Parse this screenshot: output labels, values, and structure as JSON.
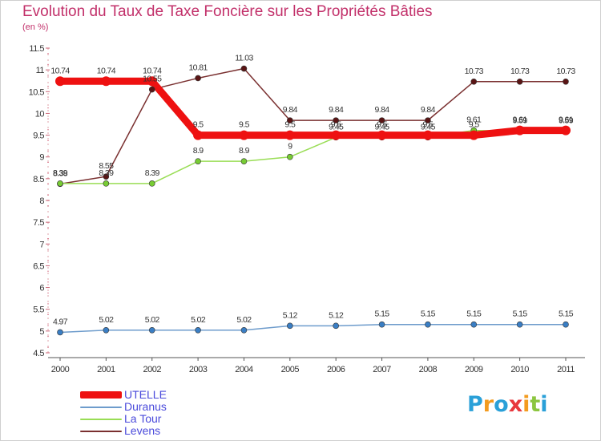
{
  "title": "Evolution du Taux de Taxe Foncière sur les Propriétés Bâties",
  "subtitle": "(en %)",
  "logo": {
    "text": "Proxiti",
    "letters": [
      "P",
      "r",
      "o",
      "x",
      "i",
      "t",
      "i"
    ],
    "colors": [
      "#2aa0d8",
      "#f39b1f",
      "#2aa0d8",
      "#e8373d",
      "#f39b1f",
      "#8cc63f",
      "#2aa0d8"
    ]
  },
  "chart_data": {
    "type": "line",
    "title": "Evolution du Taux de Taxe Foncière sur les Propriétés Bâties",
    "ylabel": "(en %)",
    "ylim": [
      4.5,
      11.5
    ],
    "yticks": [
      "4.5",
      "5",
      "5.5",
      "6",
      "6.5",
      "7",
      "7.5",
      "8",
      "8.5",
      "9",
      "9.5",
      "10",
      "10.5",
      "11",
      "11.5"
    ],
    "categories": [
      "2000",
      "2001",
      "2002",
      "2003",
      "2004",
      "2005",
      "2006",
      "2007",
      "2008",
      "2009",
      "2010",
      "2011"
    ],
    "series": [
      {
        "name": "UTELLE",
        "color": "#ee1111",
        "point_color": "#ee1111",
        "width": 9,
        "values": [
          10.74,
          10.74,
          10.74,
          9.5,
          9.5,
          9.5,
          9.5,
          9.5,
          9.5,
          9.5,
          9.61,
          9.61
        ],
        "labels": [
          "10.74",
          "10.74",
          "10.74",
          "9.5",
          "9.5",
          "9.5",
          "9.5",
          "9.5",
          "9.5",
          "9.5",
          "9.61",
          "9.61"
        ]
      },
      {
        "name": "Duranus",
        "color": "#6e9ccc",
        "point_color": "#3a7ec4",
        "width": 1.5,
        "values": [
          4.97,
          5.02,
          5.02,
          5.02,
          5.02,
          5.12,
          5.12,
          5.15,
          5.15,
          5.15,
          5.15,
          5.15
        ],
        "labels": [
          "4.97",
          "5.02",
          "5.02",
          "5.02",
          "5.02",
          "5.12",
          "5.12",
          "5.15",
          "5.15",
          "5.15",
          "5.15",
          "5.15"
        ]
      },
      {
        "name": "La Tour",
        "color": "#99dd55",
        "point_color": "#77cc33",
        "width": 1.5,
        "values": [
          8.39,
          8.39,
          8.39,
          8.9,
          8.9,
          9,
          9.45,
          9.45,
          9.45,
          9.61,
          9.59,
          9.59
        ],
        "labels": [
          "8.39",
          "8.39",
          "8.39",
          "8.9",
          "8.9",
          "9",
          "9.45",
          "9.45",
          "9.45",
          "9.61",
          "9.59",
          "9.59"
        ]
      },
      {
        "name": "Levens",
        "color": "#7a3030",
        "point_color": "#5a1515",
        "width": 1.5,
        "values": [
          8.38,
          8.55,
          10.55,
          10.81,
          11.03,
          9.84,
          9.84,
          9.84,
          9.84,
          10.73,
          10.73,
          10.73
        ],
        "labels": [
          "8.38",
          "8.55",
          "10.55",
          "10.81",
          "11.03",
          "9.84",
          "9.84",
          "9.84",
          "9.84",
          "10.73",
          "10.73",
          "10.73"
        ]
      }
    ],
    "legend_position": "bottom-left",
    "grid": false
  }
}
